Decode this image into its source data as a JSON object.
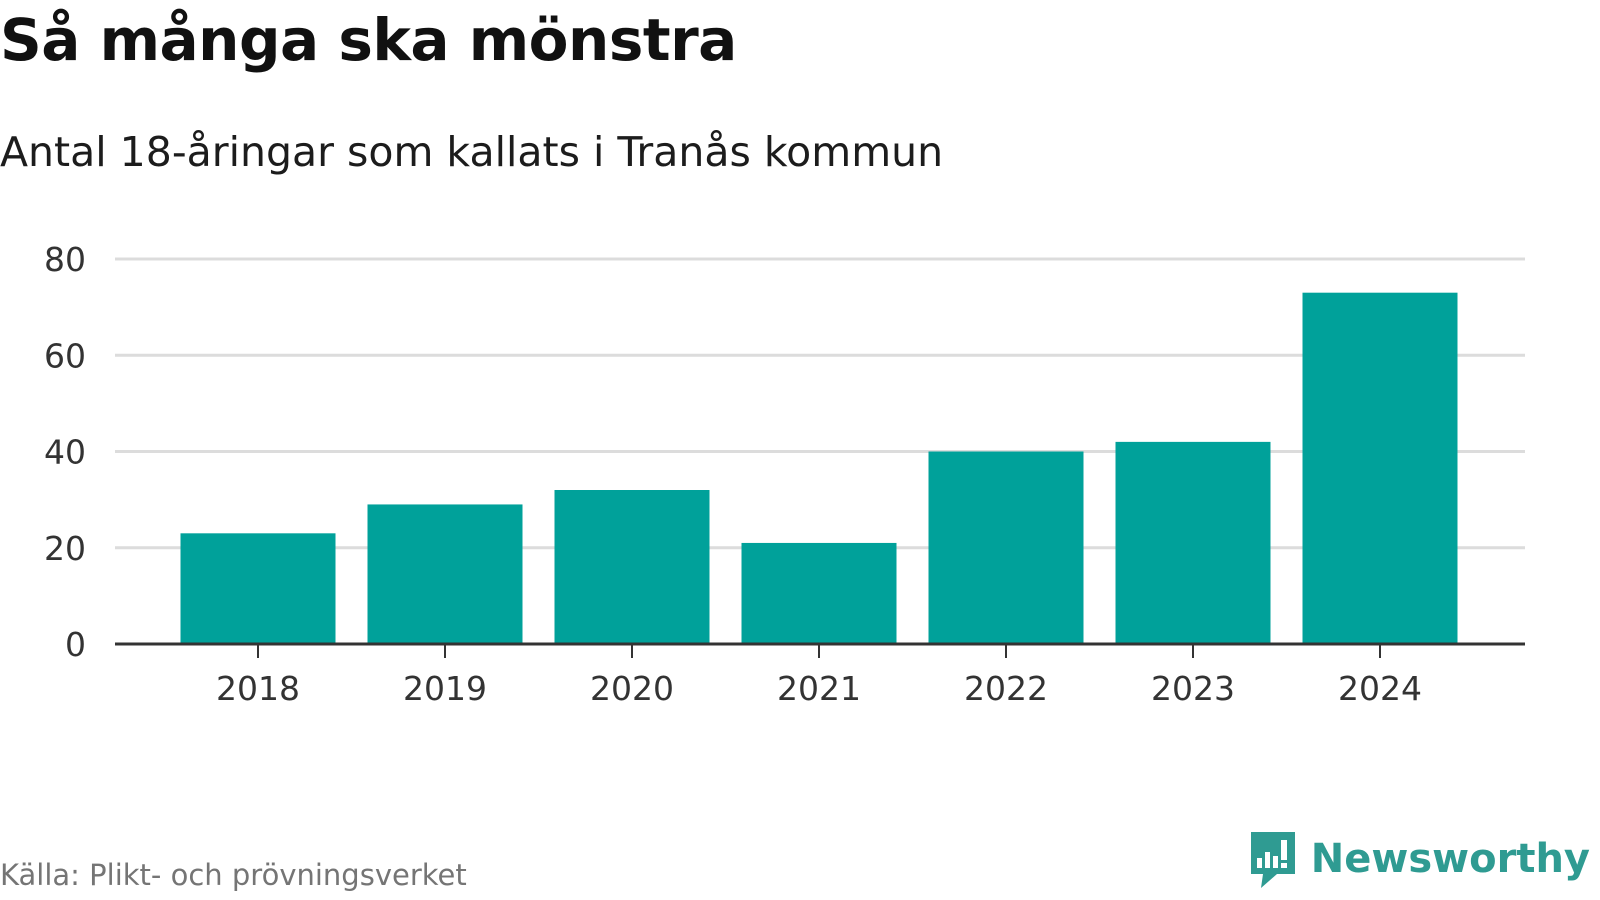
{
  "header": {
    "title": "Så många ska mönstra",
    "subtitle": "Antal 18-åringar som kallats i Tranås kommun"
  },
  "footer": {
    "source": "Källa: Plikt- och prövningsverket",
    "brand": "Newsworthy"
  },
  "colors": {
    "bar": "#00a19a",
    "grid": "#dcdcdc",
    "axis": "#333333",
    "tick_text": "#333333",
    "brand": "#2f9b92"
  },
  "chart_data": {
    "type": "bar",
    "title": "Så många ska mönstra",
    "subtitle": "Antal 18-åringar som kallats i Tranås kommun",
    "categories": [
      "2018",
      "2019",
      "2020",
      "2021",
      "2022",
      "2023",
      "2024"
    ],
    "values": [
      23,
      29,
      32,
      21,
      40,
      42,
      73
    ],
    "ylim": [
      0,
      80
    ],
    "yticks": [
      0,
      20,
      40,
      60,
      80
    ],
    "grid": true,
    "legend": "none"
  }
}
